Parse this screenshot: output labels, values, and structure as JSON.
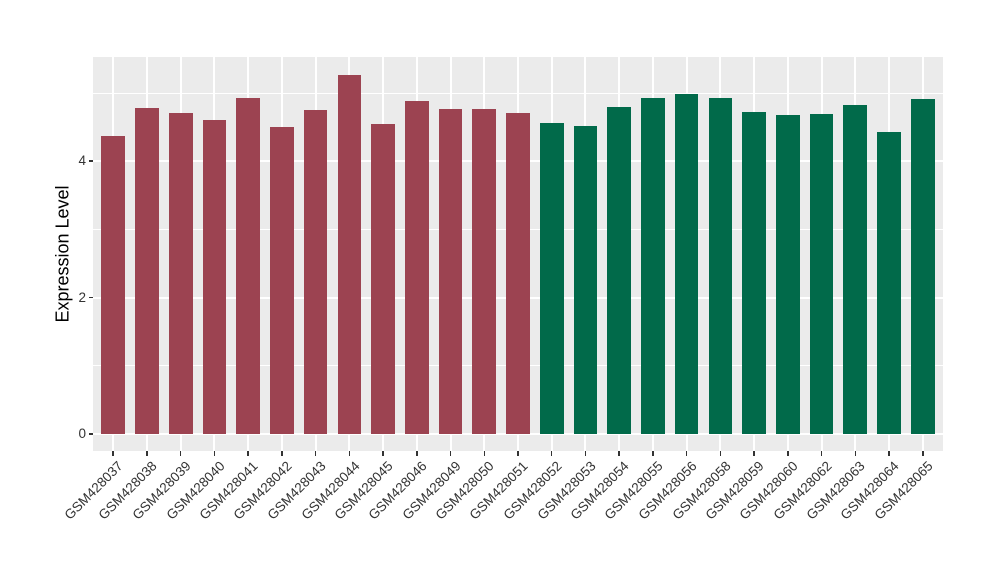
{
  "figure": {
    "background": "#FFFFFF",
    "panel_background": "#EBEBEB",
    "gridline_color": "#FFFFFF",
    "tick_mark_color": "#333333",
    "axis_text_color": "#333333",
    "axis_title_color": "#000000"
  },
  "chart_data": {
    "type": "bar",
    "title": "",
    "xlabel": "",
    "ylabel": "Expression Level",
    "ylim": [
      0,
      5.53
    ],
    "grid": "on",
    "legend": "none",
    "yticks": [
      {
        "label": "0",
        "value": 0
      },
      {
        "label": "2",
        "value": 2
      },
      {
        "label": "4",
        "value": 4
      }
    ],
    "yminor": [
      1,
      3,
      5
    ],
    "group_colors": {
      "group_a": "#9C4351",
      "group_b": "#016A4A"
    },
    "bars": [
      {
        "label": "GSM428037",
        "value": 4.37,
        "group": "group_a"
      },
      {
        "label": "GSM428038",
        "value": 4.78,
        "group": "group_a"
      },
      {
        "label": "GSM428039",
        "value": 4.7,
        "group": "group_a"
      },
      {
        "label": "GSM428040",
        "value": 4.6,
        "group": "group_a"
      },
      {
        "label": "GSM428041",
        "value": 4.93,
        "group": "group_a"
      },
      {
        "label": "GSM428042",
        "value": 4.5,
        "group": "group_a"
      },
      {
        "label": "GSM428043",
        "value": 4.75,
        "group": "group_a"
      },
      {
        "label": "GSM428044",
        "value": 5.27,
        "group": "group_a"
      },
      {
        "label": "GSM428045",
        "value": 4.54,
        "group": "group_a"
      },
      {
        "label": "GSM428046",
        "value": 4.88,
        "group": "group_a"
      },
      {
        "label": "GSM428049",
        "value": 4.76,
        "group": "group_a"
      },
      {
        "label": "GSM428050",
        "value": 4.76,
        "group": "group_a"
      },
      {
        "label": "GSM428051",
        "value": 4.71,
        "group": "group_a"
      },
      {
        "label": "GSM428052",
        "value": 4.56,
        "group": "group_b"
      },
      {
        "label": "GSM428053",
        "value": 4.52,
        "group": "group_b"
      },
      {
        "label": "GSM428054",
        "value": 4.79,
        "group": "group_b"
      },
      {
        "label": "GSM428055",
        "value": 4.93,
        "group": "group_b"
      },
      {
        "label": "GSM428056",
        "value": 4.98,
        "group": "group_b"
      },
      {
        "label": "GSM428058",
        "value": 4.92,
        "group": "group_b"
      },
      {
        "label": "GSM428059",
        "value": 4.72,
        "group": "group_b"
      },
      {
        "label": "GSM428060",
        "value": 4.68,
        "group": "group_b"
      },
      {
        "label": "GSM428062",
        "value": 4.69,
        "group": "group_b"
      },
      {
        "label": "GSM428063",
        "value": 4.82,
        "group": "group_b"
      },
      {
        "label": "GSM428064",
        "value": 4.43,
        "group": "group_b"
      },
      {
        "label": "GSM428065",
        "value": 4.91,
        "group": "group_b"
      }
    ]
  }
}
